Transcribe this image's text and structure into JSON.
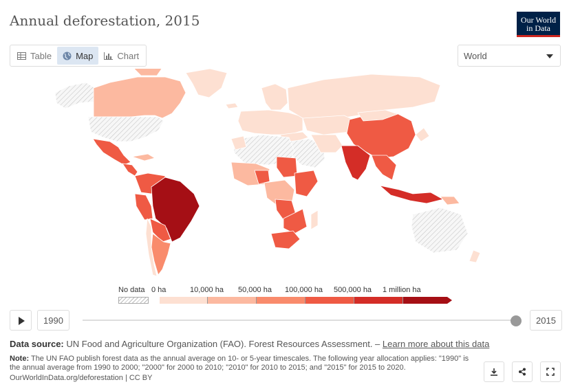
{
  "header": {
    "title": "Annual deforestation, 2015",
    "logo_line1": "Our World",
    "logo_line2": "in Data"
  },
  "tabs": [
    {
      "label": "Table",
      "icon": "table-icon",
      "active": false
    },
    {
      "label": "Map",
      "icon": "globe-icon",
      "active": true
    },
    {
      "label": "Chart",
      "icon": "chart-icon",
      "active": false
    }
  ],
  "region_select": {
    "value": "World"
  },
  "legend": {
    "no_data_label": "No data",
    "bins": [
      {
        "label": "0 ha",
        "color": "#fde0d2"
      },
      {
        "label": "10,000 ha",
        "color": "#fcb9a0"
      },
      {
        "label": "50,000 ha",
        "color": "#f98b6c"
      },
      {
        "label": "100,000 ha",
        "color": "#ef5a44"
      },
      {
        "label": "500,000 ha",
        "color": "#d42d27"
      },
      {
        "label": "1 million ha",
        "color": "#a50f15"
      }
    ]
  },
  "timeline": {
    "start_year": "1990",
    "end_year": "2015",
    "position": 1.0
  },
  "footer": {
    "source_label": "Data source:",
    "source_text": "UN Food and Agriculture Organization (FAO). Forest Resources Assessment. –",
    "learn_more": "Learn more about this data",
    "note_label": "Note:",
    "note_text": "The UN FAO publish forest data as the annual average on 10- or 5-year timescales. The following year allocation applies: \"1990\" is the annual average from 1990 to 2000; \"2000\" for 2000 to 2010; \"2010\" for 2010 to 2015; and \"2015\" for 2015 to 2020.",
    "url_text": "OurWorldInData.org/deforestation | CC BY"
  },
  "actions": [
    {
      "name": "download-button",
      "icon": "download-icon"
    },
    {
      "name": "share-button",
      "icon": "share-icon"
    },
    {
      "name": "fullscreen-button",
      "icon": "fullscreen-icon"
    }
  ]
}
